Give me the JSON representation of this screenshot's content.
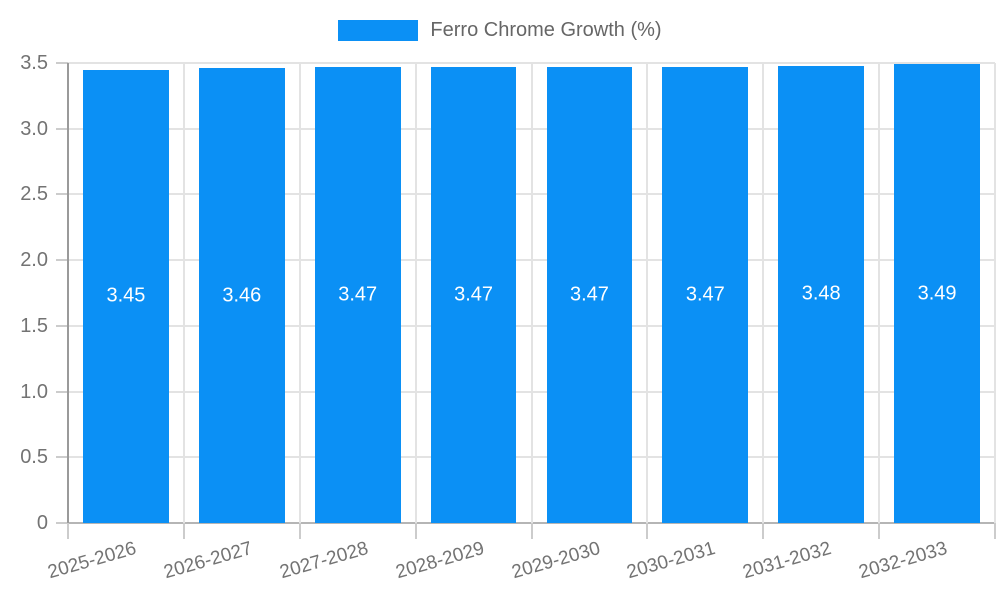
{
  "legend": {
    "label": "Ferro Chrome Growth (%)"
  },
  "colors": {
    "bar": "#0b90f5",
    "grid": "#e3e3e3",
    "axis_line": "#9a9a9a",
    "baseline": "#b5b5b5",
    "tick_mark": "#cccccc",
    "tick_text": "#737373",
    "legend_text": "#666666",
    "bar_label_text": "#ffffff"
  },
  "chart_data": {
    "type": "bar",
    "title": "",
    "categories": [
      "2025-2026",
      "2026-2027",
      "2027-2028",
      "2028-2029",
      "2029-2030",
      "2030-2031",
      "2031-2032",
      "2032-2033"
    ],
    "series": [
      {
        "name": "Ferro Chrome Growth (%)",
        "values": [
          3.45,
          3.46,
          3.47,
          3.47,
          3.47,
          3.47,
          3.48,
          3.49
        ],
        "data_labels": [
          "3.45",
          "3.46",
          "3.47",
          "3.47",
          "3.47",
          "3.47",
          "3.48",
          "3.49"
        ],
        "color": "#0b90f5"
      }
    ],
    "xlabel": "",
    "ylabel": "",
    "ylim": [
      0,
      3.5
    ],
    "yticks": [
      0,
      0.5,
      1.0,
      1.5,
      2.0,
      2.5,
      3.0,
      3.5
    ],
    "ytick_labels": [
      "0",
      "0.5",
      "1.0",
      "1.5",
      "2.0",
      "2.5",
      "3.0",
      "3.5"
    ],
    "grid": true,
    "legend_position": "top",
    "x_label_rotation_deg": -16,
    "bar_value_labels_inside": true
  }
}
